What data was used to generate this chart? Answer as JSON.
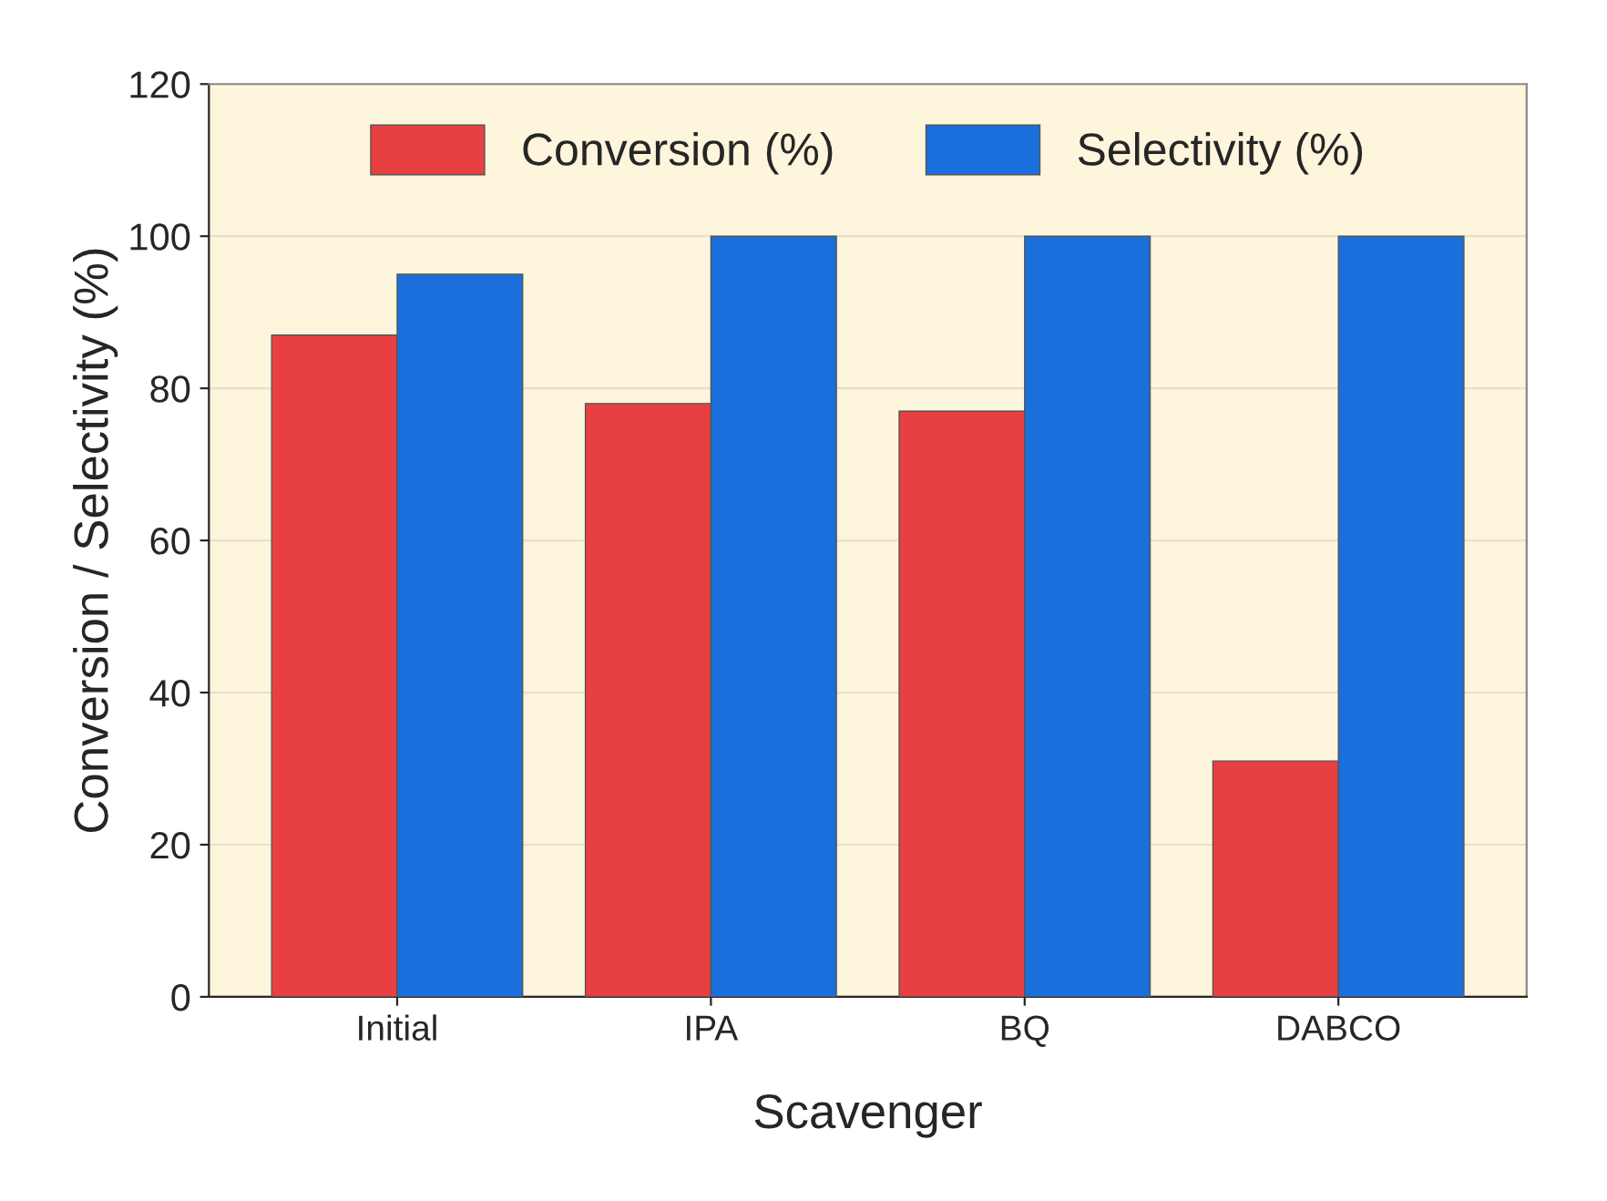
{
  "chart_data": {
    "type": "bar",
    "xlabel": "Scavenger",
    "ylabel": "Conversion / Selectivity (%)",
    "categories": [
      "Initial",
      "IPA",
      "BQ",
      "DABCO"
    ],
    "series": [
      {
        "name": "Conversion (%)",
        "color": "#e84040",
        "values": [
          87,
          78,
          77,
          31
        ]
      },
      {
        "name": "Selectivity (%)",
        "color": "#1a6fdc",
        "values": [
          95,
          100,
          100,
          100
        ]
      }
    ],
    "ylim": [
      0,
      120
    ],
    "yticks": [
      0,
      20,
      40,
      60,
      80,
      100,
      120
    ],
    "grid": "y",
    "legend": "top"
  }
}
